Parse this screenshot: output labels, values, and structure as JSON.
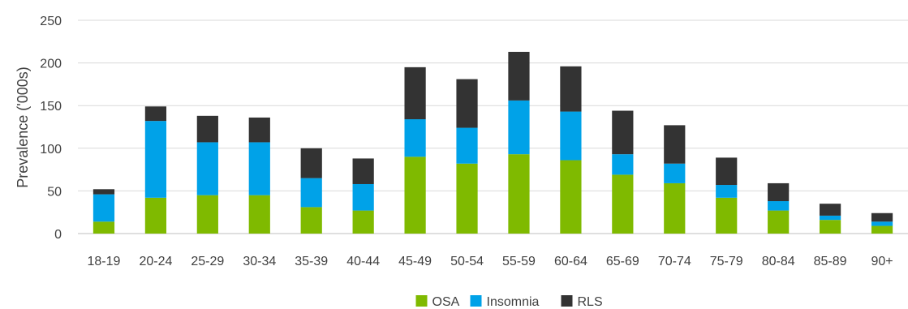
{
  "chart_data": {
    "type": "bar",
    "stacked": true,
    "title": "",
    "xlabel": "",
    "ylabel": "Prevalence ('000s)",
    "ylim": [
      0,
      250
    ],
    "yticks": [
      0,
      50,
      100,
      150,
      200,
      250
    ],
    "grid": true,
    "legend_position": "bottom",
    "categories": [
      "18-19",
      "20-24",
      "25-29",
      "30-34",
      "35-39",
      "40-44",
      "45-49",
      "50-54",
      "55-59",
      "60-64",
      "65-69",
      "70-74",
      "75-79",
      "80-84",
      "85-89",
      "90+"
    ],
    "series": [
      {
        "name": "OSA",
        "color": "#7fba00",
        "values": [
          14,
          42,
          45,
          45,
          31,
          27,
          90,
          82,
          93,
          86,
          69,
          59,
          42,
          27,
          16,
          9
        ]
      },
      {
        "name": "Insomnia",
        "color": "#00a2e8",
        "values": [
          32,
          90,
          62,
          62,
          34,
          31,
          44,
          42,
          63,
          57,
          24,
          23,
          15,
          11,
          5,
          5
        ]
      },
      {
        "name": "RLS",
        "color": "#333333",
        "values": [
          6,
          17,
          31,
          29,
          35,
          30,
          61,
          57,
          57,
          53,
          51,
          45,
          32,
          21,
          14,
          10
        ]
      }
    ]
  }
}
